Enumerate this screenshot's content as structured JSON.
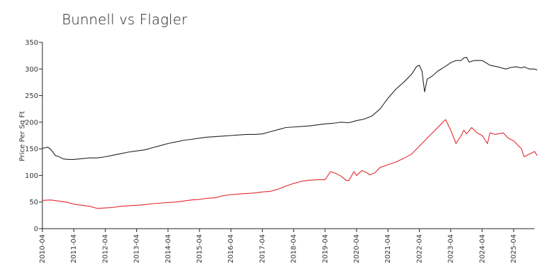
{
  "chart_data": {
    "type": "line",
    "title": "Bunnell vs Flagler",
    "xlabel": "",
    "ylabel": "Price Per Sq Ft",
    "ylim": [
      0,
      350
    ],
    "yticks": [
      0,
      50,
      100,
      150,
      200,
      250,
      300,
      350
    ],
    "x_ticks": [
      "2010-04",
      "2011-04",
      "2012-04",
      "2013-04",
      "2014-04",
      "2015-04",
      "2016-04",
      "2017-04",
      "2018-04",
      "2019-04",
      "2020-04",
      "2021-04",
      "2022-04",
      "2023-04",
      "2024-04",
      "2025-04"
    ],
    "x_range": [
      "2010-04",
      "2026-01"
    ],
    "grid": false,
    "legend": "none",
    "series": [
      {
        "color": "#222222",
        "points": [
          [
            "2010-04",
            151
          ],
          [
            "2010-05",
            152
          ],
          [
            "2010-06",
            153
          ],
          [
            "2010-07",
            150
          ],
          [
            "2010-08",
            144
          ],
          [
            "2010-09",
            137
          ],
          [
            "2010-10",
            136
          ],
          [
            "2010-12",
            131
          ],
          [
            "2011-02",
            130
          ],
          [
            "2011-04",
            130
          ],
          [
            "2011-06",
            131
          ],
          [
            "2011-08",
            132
          ],
          [
            "2011-10",
            133
          ],
          [
            "2012-01",
            133
          ],
          [
            "2012-04",
            135
          ],
          [
            "2012-07",
            138
          ],
          [
            "2012-10",
            141
          ],
          [
            "2013-01",
            144
          ],
          [
            "2013-04",
            146
          ],
          [
            "2013-07",
            148
          ],
          [
            "2013-10",
            152
          ],
          [
            "2014-01",
            156
          ],
          [
            "2014-04",
            160
          ],
          [
            "2014-07",
            163
          ],
          [
            "2014-10",
            166
          ],
          [
            "2015-01",
            168
          ],
          [
            "2015-04",
            170
          ],
          [
            "2015-07",
            172
          ],
          [
            "2015-10",
            173
          ],
          [
            "2016-01",
            174
          ],
          [
            "2016-04",
            175
          ],
          [
            "2016-07",
            176
          ],
          [
            "2016-10",
            177
          ],
          [
            "2017-01",
            177
          ],
          [
            "2017-04",
            178
          ],
          [
            "2017-07",
            182
          ],
          [
            "2017-10",
            186
          ],
          [
            "2018-01",
            190
          ],
          [
            "2018-04",
            191
          ],
          [
            "2018-07",
            192
          ],
          [
            "2018-10",
            193
          ],
          [
            "2019-01",
            195
          ],
          [
            "2019-04",
            197
          ],
          [
            "2019-07",
            198
          ],
          [
            "2019-10",
            200
          ],
          [
            "2020-01",
            199
          ],
          [
            "2020-04",
            203
          ],
          [
            "2020-07",
            206
          ],
          [
            "2020-10",
            212
          ],
          [
            "2021-01",
            225
          ],
          [
            "2021-04",
            245
          ],
          [
            "2021-07",
            262
          ],
          [
            "2021-10",
            275
          ],
          [
            "2022-01",
            290
          ],
          [
            "2022-03",
            305
          ],
          [
            "2022-04",
            307
          ],
          [
            "2022-05",
            296
          ],
          [
            "2022-06",
            257
          ],
          [
            "2022-07",
            281
          ],
          [
            "2022-09",
            287
          ],
          [
            "2022-11",
            296
          ],
          [
            "2023-02",
            305
          ],
          [
            "2023-04",
            312
          ],
          [
            "2023-06",
            316
          ],
          [
            "2023-08",
            316
          ],
          [
            "2023-09",
            321
          ],
          [
            "2023-10",
            322
          ],
          [
            "2023-11",
            313
          ],
          [
            "2024-01",
            316
          ],
          [
            "2024-04",
            316
          ],
          [
            "2024-07",
            307
          ],
          [
            "2024-10",
            304
          ],
          [
            "2025-01",
            300
          ],
          [
            "2025-03",
            303
          ],
          [
            "2025-05",
            304
          ],
          [
            "2025-07",
            302
          ],
          [
            "2025-08",
            304
          ],
          [
            "2025-10",
            300
          ],
          [
            "2025-12",
            300
          ],
          [
            "2026-01",
            298
          ]
        ]
      },
      {
        "color": "#e4252b",
        "points": [
          [
            "2010-04",
            53
          ],
          [
            "2010-07",
            54
          ],
          [
            "2010-10",
            52
          ],
          [
            "2011-01",
            50
          ],
          [
            "2011-04",
            46
          ],
          [
            "2011-07",
            44
          ],
          [
            "2011-10",
            42
          ],
          [
            "2012-01",
            38
          ],
          [
            "2012-04",
            39
          ],
          [
            "2012-07",
            40
          ],
          [
            "2012-10",
            42
          ],
          [
            "2013-01",
            43
          ],
          [
            "2013-04",
            44
          ],
          [
            "2013-07",
            45
          ],
          [
            "2013-10",
            47
          ],
          [
            "2014-01",
            48
          ],
          [
            "2014-04",
            49
          ],
          [
            "2014-07",
            50
          ],
          [
            "2014-10",
            52
          ],
          [
            "2015-01",
            54
          ],
          [
            "2015-04",
            55
          ],
          [
            "2015-07",
            57
          ],
          [
            "2015-10",
            58
          ],
          [
            "2016-01",
            62
          ],
          [
            "2016-04",
            64
          ],
          [
            "2016-07",
            65
          ],
          [
            "2016-10",
            66
          ],
          [
            "2017-01",
            67
          ],
          [
            "2017-04",
            69
          ],
          [
            "2017-07",
            70
          ],
          [
            "2017-10",
            74
          ],
          [
            "2018-01",
            80
          ],
          [
            "2018-04",
            85
          ],
          [
            "2018-07",
            89
          ],
          [
            "2018-10",
            91
          ],
          [
            "2019-01",
            92
          ],
          [
            "2019-04",
            92
          ],
          [
            "2019-06",
            107
          ],
          [
            "2019-08",
            104
          ],
          [
            "2019-10",
            99
          ],
          [
            "2019-12",
            91
          ],
          [
            "2020-01",
            90
          ],
          [
            "2020-03",
            107
          ],
          [
            "2020-04",
            100
          ],
          [
            "2020-06",
            109
          ],
          [
            "2020-08",
            105
          ],
          [
            "2020-09",
            101
          ],
          [
            "2020-11",
            105
          ],
          [
            "2021-01",
            115
          ],
          [
            "2021-04",
            120
          ],
          [
            "2021-07",
            125
          ],
          [
            "2021-10",
            132
          ],
          [
            "2022-01",
            140
          ],
          [
            "2022-03",
            150
          ],
          [
            "2022-06",
            165
          ],
          [
            "2022-09",
            180
          ],
          [
            "2022-12",
            195
          ],
          [
            "2023-02",
            205
          ],
          [
            "2023-04",
            185
          ],
          [
            "2023-06",
            160
          ],
          [
            "2023-08",
            175
          ],
          [
            "2023-09",
            185
          ],
          [
            "2023-10",
            178
          ],
          [
            "2023-12",
            190
          ],
          [
            "2024-02",
            180
          ],
          [
            "2024-04",
            175
          ],
          [
            "2024-06",
            160
          ],
          [
            "2024-07",
            180
          ],
          [
            "2024-09",
            177
          ],
          [
            "2024-12",
            180
          ],
          [
            "2025-02",
            170
          ],
          [
            "2025-04",
            165
          ],
          [
            "2025-07",
            150
          ],
          [
            "2025-08",
            135
          ],
          [
            "2025-10",
            140
          ],
          [
            "2025-12",
            145
          ],
          [
            "2026-01",
            137
          ]
        ]
      }
    ]
  }
}
